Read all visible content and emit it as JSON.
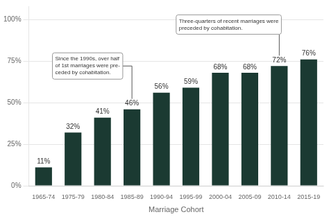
{
  "chart_data": {
    "type": "bar",
    "categories": [
      "1965-74",
      "1975-79",
      "1980-84",
      "1985-89",
      "1990-94",
      "1995-99",
      "2000-04",
      "2005-09",
      "2010-14",
      "2015-19"
    ],
    "values": [
      11,
      32,
      41,
      46,
      56,
      59,
      68,
      68,
      72,
      76
    ],
    "value_labels": [
      "11%",
      "32%",
      "41%",
      "46%",
      "56%",
      "59%",
      "68%",
      "68%",
      "72%",
      "76%"
    ],
    "data_labels": true,
    "color": "#1b3a32",
    "xlabel": "Marriage Cohort",
    "ylim": [
      0,
      108
    ],
    "yticks": [
      {
        "value": 0,
        "label": "0%"
      },
      {
        "value": 25,
        "label": "25%"
      },
      {
        "value": 50,
        "label": "50%"
      },
      {
        "value": 75,
        "label": "75%"
      },
      {
        "value": 100,
        "label": "100%"
      }
    ],
    "grid": true,
    "annotations": [
      {
        "text": "Since the 1990s, over half\nof 1st marriages were pre-\nceded by cohabitation.",
        "category": "1985-89"
      },
      {
        "text": "Three-quarters of recent marriages were\npreceded by cohabitation.",
        "category": "2010-14"
      }
    ]
  }
}
